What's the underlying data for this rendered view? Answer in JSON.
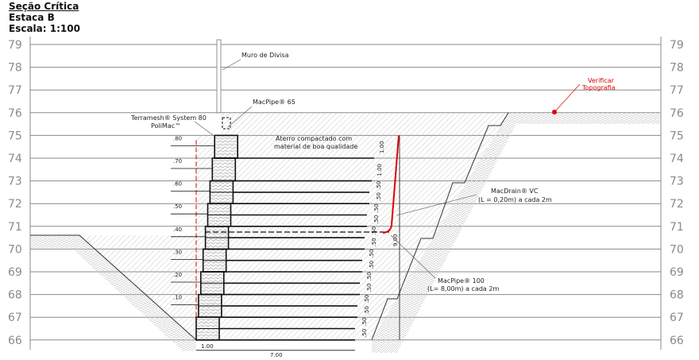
{
  "header": {
    "title": "Seção Crítica",
    "station": "Estaca B",
    "scale": "Escala: 1:100"
  },
  "elevations": [
    79,
    78,
    77,
    76,
    75,
    74,
    73,
    72,
    71,
    70,
    69,
    68,
    67,
    66
  ],
  "labels": {
    "boundary_wall": "Muro de Divisa",
    "macpipe65": "MacPipe® 65",
    "terramesh_1": "Terramesh® System 80",
    "terramesh_2": "PoliMac™",
    "fill_1": "Aterro compactado com",
    "fill_2": "material de boa qualidade",
    "macdrain_1": "MacDrain® VC",
    "macdrain_2": "(L = 0,20m) a cada 2m",
    "macpipe100_1": "MacPipe® 100",
    "macpipe100_2": "(L= 8,00m) a cada 2m",
    "verify_1": "Verificar",
    "verify_2": "Topografia"
  },
  "setbacks": [
    ".10",
    ".20",
    ".30",
    ".40",
    ".50",
    ".60",
    ".70",
    ".80"
  ],
  "dimensions": {
    "base_width": "1.00",
    "reinf_length": "7.00",
    "total_height": "9.00",
    "half_layer": ".50",
    "full_layer": "1.00"
  },
  "colors": {
    "grid": "#8a8a8a",
    "red": "#e00000",
    "ink": "#111111"
  }
}
